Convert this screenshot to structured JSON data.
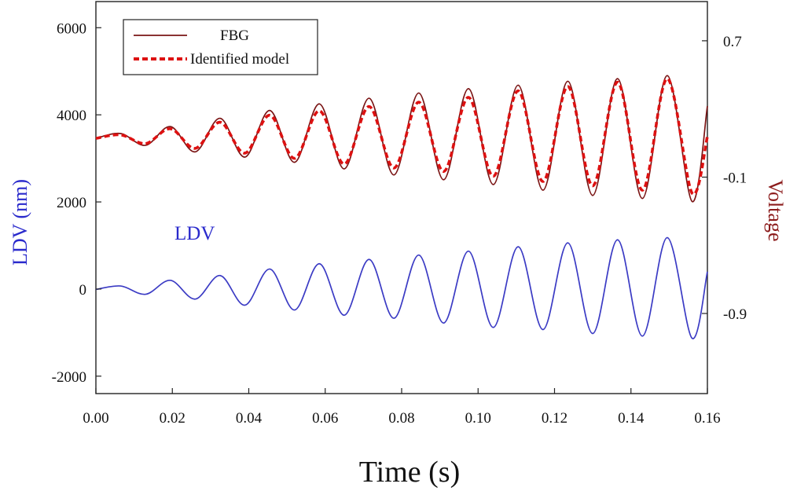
{
  "chart_data": {
    "type": "line",
    "title": "",
    "xlabel": "Time (s)",
    "ylabel_left": "LDV (nm)",
    "ylabel_right": "Voltage",
    "xlim": [
      0,
      0.16
    ],
    "ylim_left": [
      -2400,
      6600
    ],
    "ylim_right": [
      -1.37,
      0.93
    ],
    "x_ticks": [
      "0.00",
      "0.02",
      "0.04",
      "0.06",
      "0.08",
      "0.10",
      "0.12",
      "0.14",
      "0.16"
    ],
    "x_tick_values": [
      0,
      0.02,
      0.04,
      0.06,
      0.08,
      0.1,
      0.12,
      0.14,
      0.16
    ],
    "y_left_ticks": [
      "-2000",
      "0",
      "2000",
      "4000",
      "6000"
    ],
    "y_left_tick_values": [
      -2000,
      0,
      2000,
      4000,
      6000
    ],
    "y_right_ticks": [
      "-0.9",
      "-0.1",
      "0.7"
    ],
    "y_right_tick_values": [
      -0.9,
      -0.1,
      0.7
    ],
    "annotation": "LDV",
    "legend": {
      "position": "top-left",
      "entries": [
        "FBG",
        "Identified model"
      ]
    },
    "series": [
      {
        "name": "FBG",
        "axis": "left",
        "color": "#7a1414",
        "style": "solid",
        "points": [
          [
            0,
            3460
          ],
          [
            0.0065,
            3570
          ],
          [
            0.013,
            3300
          ],
          [
            0.0195,
            3730
          ],
          [
            0.026,
            3150
          ],
          [
            0.0325,
            3920
          ],
          [
            0.039,
            3030
          ],
          [
            0.0455,
            4100
          ],
          [
            0.052,
            2910
          ],
          [
            0.0585,
            4250
          ],
          [
            0.065,
            2760
          ],
          [
            0.0715,
            4380
          ],
          [
            0.078,
            2620
          ],
          [
            0.0845,
            4500
          ],
          [
            0.091,
            2510
          ],
          [
            0.0975,
            4600
          ],
          [
            0.104,
            2400
          ],
          [
            0.1105,
            4680
          ],
          [
            0.117,
            2270
          ],
          [
            0.1235,
            4770
          ],
          [
            0.13,
            2150
          ],
          [
            0.1365,
            4830
          ],
          [
            0.143,
            2080
          ],
          [
            0.1495,
            4900
          ],
          [
            0.156,
            2010
          ],
          [
            0.16,
            4200
          ]
        ]
      },
      {
        "name": "Identified model",
        "axis": "left",
        "color": "#dd1111",
        "style": "dashed",
        "points": [
          [
            0,
            3460
          ],
          [
            0.0065,
            3540
          ],
          [
            0.013,
            3340
          ],
          [
            0.0195,
            3680
          ],
          [
            0.026,
            3230
          ],
          [
            0.0325,
            3830
          ],
          [
            0.039,
            3120
          ],
          [
            0.0455,
            3990
          ],
          [
            0.052,
            3000
          ],
          [
            0.0585,
            4090
          ],
          [
            0.065,
            2870
          ],
          [
            0.0715,
            4190
          ],
          [
            0.078,
            2780
          ],
          [
            0.0845,
            4290
          ],
          [
            0.091,
            2700
          ],
          [
            0.0975,
            4400
          ],
          [
            0.104,
            2590
          ],
          [
            0.1105,
            4550
          ],
          [
            0.117,
            2470
          ],
          [
            0.1235,
            4650
          ],
          [
            0.13,
            2370
          ],
          [
            0.1365,
            4750
          ],
          [
            0.143,
            2270
          ],
          [
            0.1495,
            4830
          ],
          [
            0.156,
            2200
          ],
          [
            0.16,
            3500
          ]
        ]
      },
      {
        "name": "LDV",
        "axis": "left",
        "color": "#3b3bc4",
        "style": "solid",
        "points": [
          [
            0,
            -10
          ],
          [
            0.0065,
            70
          ],
          [
            0.013,
            -120
          ],
          [
            0.0195,
            200
          ],
          [
            0.026,
            -230
          ],
          [
            0.0325,
            310
          ],
          [
            0.039,
            -370
          ],
          [
            0.0455,
            460
          ],
          [
            0.052,
            -480
          ],
          [
            0.0585,
            580
          ],
          [
            0.065,
            -600
          ],
          [
            0.0715,
            680
          ],
          [
            0.078,
            -670
          ],
          [
            0.0845,
            780
          ],
          [
            0.091,
            -780
          ],
          [
            0.0975,
            870
          ],
          [
            0.104,
            -880
          ],
          [
            0.1105,
            970
          ],
          [
            0.117,
            -930
          ],
          [
            0.1235,
            1060
          ],
          [
            0.13,
            -1020
          ],
          [
            0.1365,
            1130
          ],
          [
            0.143,
            -1080
          ],
          [
            0.1495,
            1180
          ],
          [
            0.156,
            -1130
          ],
          [
            0.16,
            400
          ]
        ]
      }
    ]
  }
}
